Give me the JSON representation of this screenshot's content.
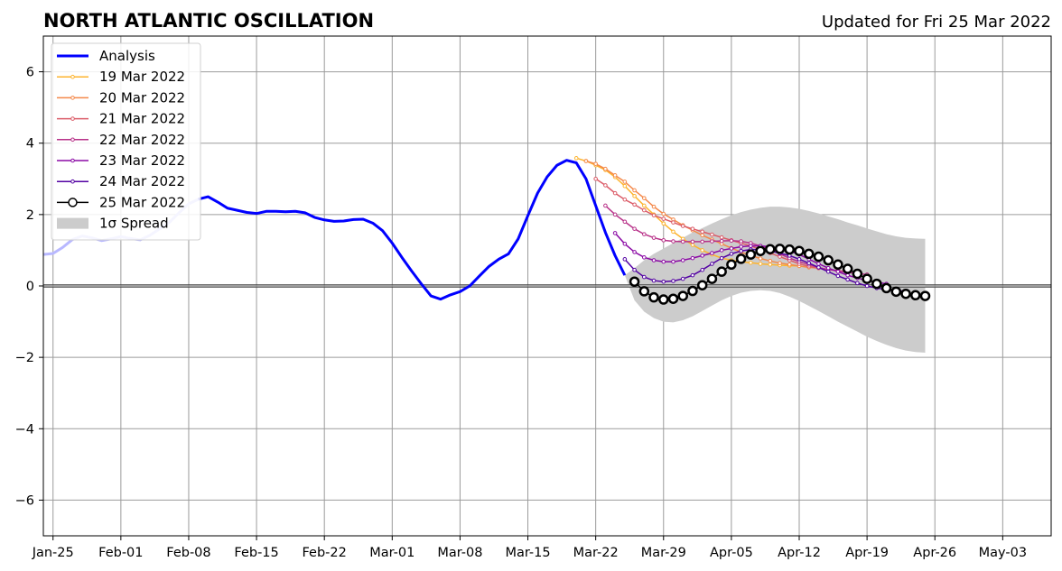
{
  "chart_data": {
    "type": "line",
    "title": "NORTH ATLANTIC OSCILLATION",
    "subtitle": "Updated for Fri 25 Mar 2022",
    "xlabel": "",
    "ylabel": "",
    "ylim": [
      -7,
      7
    ],
    "yticks": [
      -6,
      -4,
      -2,
      0,
      2,
      4,
      6
    ],
    "ytick_labels": [
      "−6",
      "−4",
      "−2",
      "0",
      "2",
      "4",
      "6"
    ],
    "xlim": [
      "2022-01-24",
      "2022-05-08"
    ],
    "xticks": [
      "2022-01-25",
      "2022-02-01",
      "2022-02-08",
      "2022-02-15",
      "2022-02-22",
      "2022-03-01",
      "2022-03-08",
      "2022-03-15",
      "2022-03-22",
      "2022-03-29",
      "2022-04-05",
      "2022-04-12",
      "2022-04-19",
      "2022-04-26",
      "2022-05-03"
    ],
    "xtick_labels": [
      "Jan-25",
      "Feb-01",
      "Feb-08",
      "Feb-15",
      "Feb-22",
      "Mar-01",
      "Mar-08",
      "Mar-15",
      "Mar-22",
      "Mar-29",
      "Apr-05",
      "Apr-12",
      "Apr-19",
      "Apr-26",
      "May-03"
    ],
    "grid": true,
    "legend_position": "upper-left",
    "legend": [
      {
        "label": "Analysis",
        "color": "#0000ff",
        "kind": "line"
      },
      {
        "label": "19 Mar 2022",
        "color": "#fdb42f",
        "kind": "line-dot"
      },
      {
        "label": "20 Mar 2022",
        "color": "#f48849",
        "kind": "line-dot"
      },
      {
        "label": "21 Mar 2022",
        "color": "#db5c68",
        "kind": "line-dot"
      },
      {
        "label": "22 Mar 2022",
        "color": "#b83289",
        "kind": "line-dot"
      },
      {
        "label": "23 Mar 2022",
        "color": "#8b0aa5",
        "kind": "line-dot"
      },
      {
        "label": "24 Mar 2022",
        "color": "#5302a3",
        "kind": "line-dot"
      },
      {
        "label": "25 Mar 2022",
        "color": "#000000",
        "kind": "line-circle"
      },
      {
        "label": "1σ Spread",
        "color": "#cccccc",
        "kind": "patch"
      }
    ],
    "analysis": {
      "name": "Analysis",
      "color": "#0000ff",
      "faded_color": "#b8b8ff",
      "faded_until": "2022-02-09",
      "x": [
        "2022-01-24",
        "2022-01-25",
        "2022-01-26",
        "2022-01-27",
        "2022-01-28",
        "2022-01-29",
        "2022-01-30",
        "2022-01-31",
        "2022-02-01",
        "2022-02-02",
        "2022-02-03",
        "2022-02-04",
        "2022-02-05",
        "2022-02-06",
        "2022-02-07",
        "2022-02-08",
        "2022-02-09",
        "2022-02-10",
        "2022-02-11",
        "2022-02-12",
        "2022-02-13",
        "2022-02-14",
        "2022-02-15",
        "2022-02-16",
        "2022-02-17",
        "2022-02-18",
        "2022-02-19",
        "2022-02-20",
        "2022-02-21",
        "2022-02-22",
        "2022-02-23",
        "2022-02-24",
        "2022-02-25",
        "2022-02-26",
        "2022-02-27",
        "2022-02-28",
        "2022-03-01",
        "2022-03-02",
        "2022-03-03",
        "2022-03-04",
        "2022-03-05",
        "2022-03-06",
        "2022-03-07",
        "2022-03-08",
        "2022-03-09",
        "2022-03-10",
        "2022-03-11",
        "2022-03-12",
        "2022-03-13",
        "2022-03-14",
        "2022-03-15",
        "2022-03-16",
        "2022-03-17",
        "2022-03-18",
        "2022-03-19",
        "2022-03-20",
        "2022-03-21",
        "2022-03-22",
        "2022-03-23",
        "2022-03-24",
        "2022-03-25"
      ],
      "y": [
        0.88,
        0.91,
        1.08,
        1.3,
        1.4,
        1.35,
        1.27,
        1.32,
        1.38,
        1.33,
        1.29,
        1.42,
        1.6,
        1.78,
        2.05,
        2.3,
        2.43,
        2.5,
        2.35,
        2.18,
        2.12,
        2.06,
        2.03,
        2.09,
        2.09,
        2.08,
        2.09,
        2.05,
        1.92,
        1.85,
        1.81,
        1.82,
        1.86,
        1.87,
        1.76,
        1.55,
        1.2,
        0.8,
        0.42,
        0.06,
        -0.28,
        -0.37,
        -0.25,
        -0.16,
        0.0,
        0.28,
        0.55,
        0.75,
        0.9,
        1.32,
        1.97,
        2.6,
        3.06,
        3.38,
        3.52,
        3.45,
        3.0,
        2.25,
        1.5,
        0.85,
        0.3
      ]
    },
    "series": [
      {
        "name": "19 Mar 2022",
        "color": "#fdb42f",
        "x_start": "2022-03-20",
        "values": [
          3.58,
          3.5,
          3.38,
          3.25,
          3.05,
          2.8,
          2.52,
          2.25,
          2.0,
          1.75,
          1.52,
          1.32,
          1.15,
          1.0,
          0.88,
          0.78,
          0.72,
          0.68,
          0.65,
          0.62,
          0.6,
          0.58,
          0.57,
          0.56
        ]
      },
      {
        "name": "20 Mar 2022",
        "color": "#f48849",
        "x_start": "2022-03-21",
        "values": [
          3.5,
          3.42,
          3.28,
          3.1,
          2.92,
          2.68,
          2.46,
          2.22,
          2.02,
          1.86,
          1.7,
          1.56,
          1.42,
          1.3,
          1.18,
          1.06,
          0.95,
          0.85,
          0.77,
          0.7,
          0.64,
          0.6,
          0.56,
          0.52,
          0.5
        ]
      },
      {
        "name": "21 Mar 2022",
        "color": "#db5c68",
        "x_start": "2022-03-22",
        "values": [
          3.0,
          2.82,
          2.6,
          2.42,
          2.28,
          2.12,
          1.98,
          1.88,
          1.78,
          1.68,
          1.6,
          1.52,
          1.44,
          1.36,
          1.28,
          1.2,
          1.12,
          1.02,
          0.92,
          0.82,
          0.72,
          0.62,
          0.55,
          0.5,
          0.46,
          0.43,
          0.4
        ]
      },
      {
        "name": "22 Mar 2022",
        "color": "#b83289",
        "x_start": "2022-03-23",
        "values": [
          2.25,
          2.0,
          1.8,
          1.6,
          1.45,
          1.35,
          1.28,
          1.25,
          1.24,
          1.24,
          1.24,
          1.25,
          1.26,
          1.27,
          1.25,
          1.2,
          1.12,
          1.02,
          0.9,
          0.78,
          0.68,
          0.6,
          0.52,
          0.46,
          0.42,
          0.38,
          0.35,
          0.32
        ]
      },
      {
        "name": "23 Mar 2022",
        "color": "#8b0aa5",
        "x_start": "2022-03-24",
        "values": [
          1.48,
          1.18,
          0.95,
          0.8,
          0.72,
          0.68,
          0.68,
          0.72,
          0.78,
          0.85,
          0.92,
          1.0,
          1.05,
          1.1,
          1.12,
          1.12,
          1.1,
          1.05,
          0.98,
          0.88,
          0.75,
          0.62,
          0.5,
          0.4,
          0.3,
          0.22,
          0.15,
          0.1,
          0.06
        ]
      },
      {
        "name": "24 Mar 2022",
        "color": "#5302a3",
        "x_start": "2022-03-25",
        "values": [
          0.75,
          0.45,
          0.25,
          0.15,
          0.12,
          0.14,
          0.2,
          0.3,
          0.45,
          0.62,
          0.78,
          0.9,
          0.98,
          1.02,
          1.02,
          0.98,
          0.92,
          0.85,
          0.75,
          0.64,
          0.52,
          0.4,
          0.28,
          0.18,
          0.08,
          0.0,
          -0.06,
          -0.1,
          -0.13,
          -0.15
        ]
      },
      {
        "name": "25 Mar 2022",
        "color": "#000000",
        "x_start": "2022-03-26",
        "values": [
          0.12,
          -0.15,
          -0.32,
          -0.38,
          -0.36,
          -0.28,
          -0.14,
          0.02,
          0.2,
          0.4,
          0.6,
          0.76,
          0.88,
          0.98,
          1.03,
          1.04,
          1.02,
          0.98,
          0.9,
          0.82,
          0.72,
          0.6,
          0.48,
          0.34,
          0.2,
          0.06,
          -0.06,
          -0.16,
          -0.22,
          -0.26,
          -0.28
        ]
      }
    ],
    "spread": {
      "name": "1σ Spread",
      "color": "#cccccc",
      "x_start": "2022-03-25",
      "upper": [
        0.3,
        0.5,
        0.72,
        0.9,
        1.05,
        1.2,
        1.35,
        1.5,
        1.62,
        1.75,
        1.87,
        1.98,
        2.07,
        2.14,
        2.19,
        2.22,
        2.22,
        2.2,
        2.16,
        2.1,
        2.03,
        1.95,
        1.87,
        1.78,
        1.7,
        1.61,
        1.53,
        1.45,
        1.39,
        1.35,
        1.33,
        1.32
      ],
      "lower": [
        0.3,
        -0.4,
        -0.72,
        -0.9,
        -1.0,
        -1.02,
        -0.96,
        -0.85,
        -0.7,
        -0.55,
        -0.4,
        -0.28,
        -0.19,
        -0.14,
        -0.12,
        -0.14,
        -0.2,
        -0.3,
        -0.42,
        -0.56,
        -0.7,
        -0.85,
        -1.0,
        -1.14,
        -1.28,
        -1.42,
        -1.54,
        -1.65,
        -1.74,
        -1.81,
        -1.85,
        -1.87
      ]
    }
  }
}
